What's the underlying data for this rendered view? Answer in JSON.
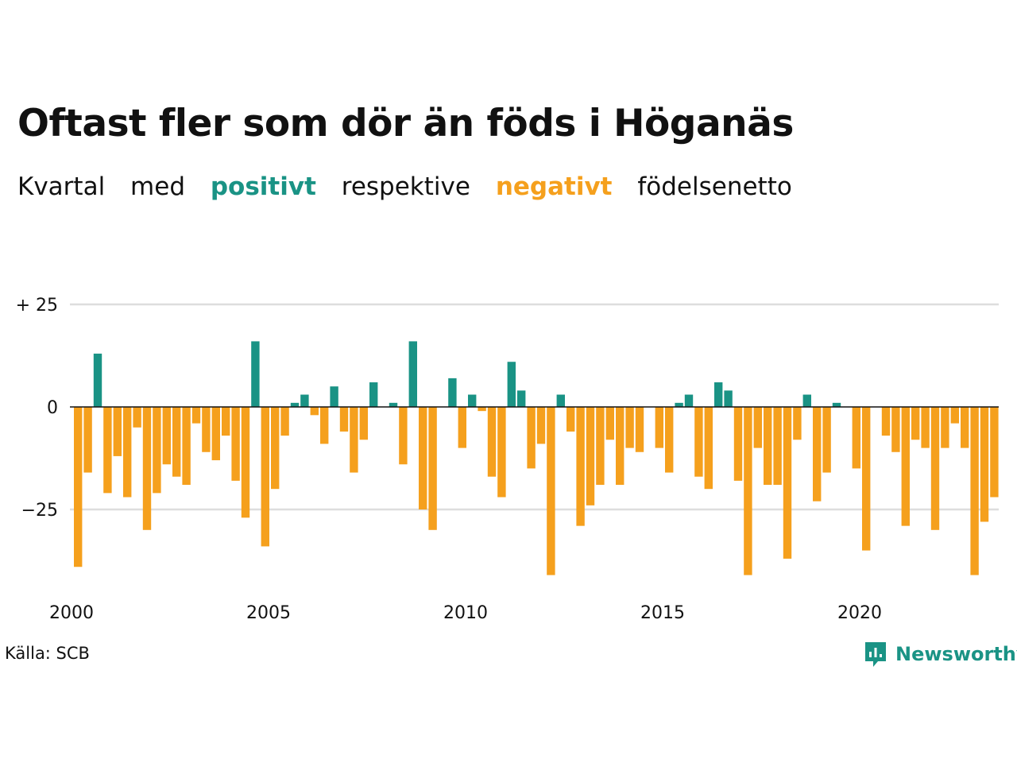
{
  "title": "Oftast fler som dör än föds i Höganäs",
  "subtitle": {
    "part1": "Kvartal",
    "part2": "med",
    "positive": "positivt",
    "part3": "respektive",
    "negative": "negativt",
    "part4": "födelsenetto"
  },
  "source": "Källa: SCB",
  "logo": "Newsworthy",
  "colors": {
    "positive": "#1a9385",
    "negative": "#f5a01d",
    "grid": "#dddddd",
    "zero": "#111111"
  },
  "chart_data": {
    "type": "bar",
    "title": "Oftast fler som dör än föds i Höganäs",
    "subtitle": "Kvartal med positivt respektive negativt födelsenetto",
    "xlabel": "",
    "ylabel": "",
    "ylim": [
      -42,
      26
    ],
    "grid": true,
    "y_ticks": [
      {
        "value": 25,
        "label": "+ 25"
      },
      {
        "value": 0,
        "label": "0"
      },
      {
        "value": -25,
        "label": "−25"
      }
    ],
    "x_ticks": [
      {
        "year": 2000,
        "label": "2000"
      },
      {
        "year": 2005,
        "label": "2005"
      },
      {
        "year": 2010,
        "label": "2010"
      },
      {
        "year": 2015,
        "label": "2015"
      },
      {
        "year": 2020,
        "label": "2020"
      }
    ],
    "first_quarter": "2000 K1",
    "values": [
      -39,
      -16,
      13,
      -21,
      -12,
      -22,
      -5,
      -30,
      -21,
      -14,
      -17,
      -19,
      -4,
      -11,
      -13,
      -7,
      -18,
      -27,
      16,
      -34,
      -20,
      -7,
      1,
      3,
      -2,
      -9,
      5,
      -6,
      -16,
      -8,
      6,
      0,
      1,
      -14,
      16,
      -25,
      -30,
      0,
      7,
      -10,
      3,
      -1,
      -17,
      -22,
      11,
      4,
      -15,
      -9,
      -41,
      3,
      -6,
      -29,
      -24,
      -19,
      -8,
      -19,
      -10,
      -11,
      0,
      -10,
      -16,
      1,
      3,
      -17,
      -20,
      6,
      4,
      -18,
      -41,
      -10,
      -19,
      -19,
      -37,
      -8,
      3,
      -23,
      -16,
      1,
      0,
      -15,
      -35,
      0,
      -7,
      -11,
      -29,
      -8,
      -10,
      -30,
      -10,
      -4,
      -10,
      -41,
      -28,
      -22
    ]
  }
}
